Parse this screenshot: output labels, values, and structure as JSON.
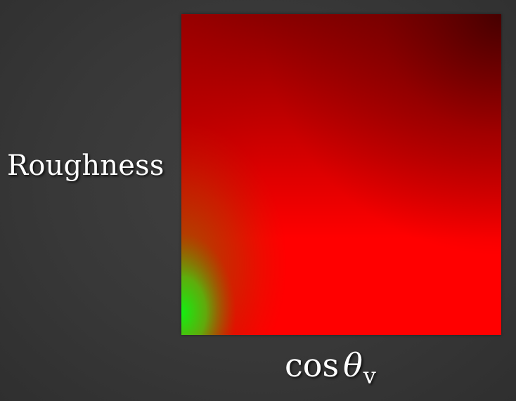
{
  "labels": {
    "y_axis": "Roughness",
    "x_axis_fn": "cos",
    "x_axis_symbol": "θ",
    "x_axis_subscript": "v"
  },
  "colors": {
    "background": "#3a3a3a",
    "lut_red": "#ff0000",
    "lut_dark_red": "#5a0000",
    "lut_green": "#14e614"
  }
}
